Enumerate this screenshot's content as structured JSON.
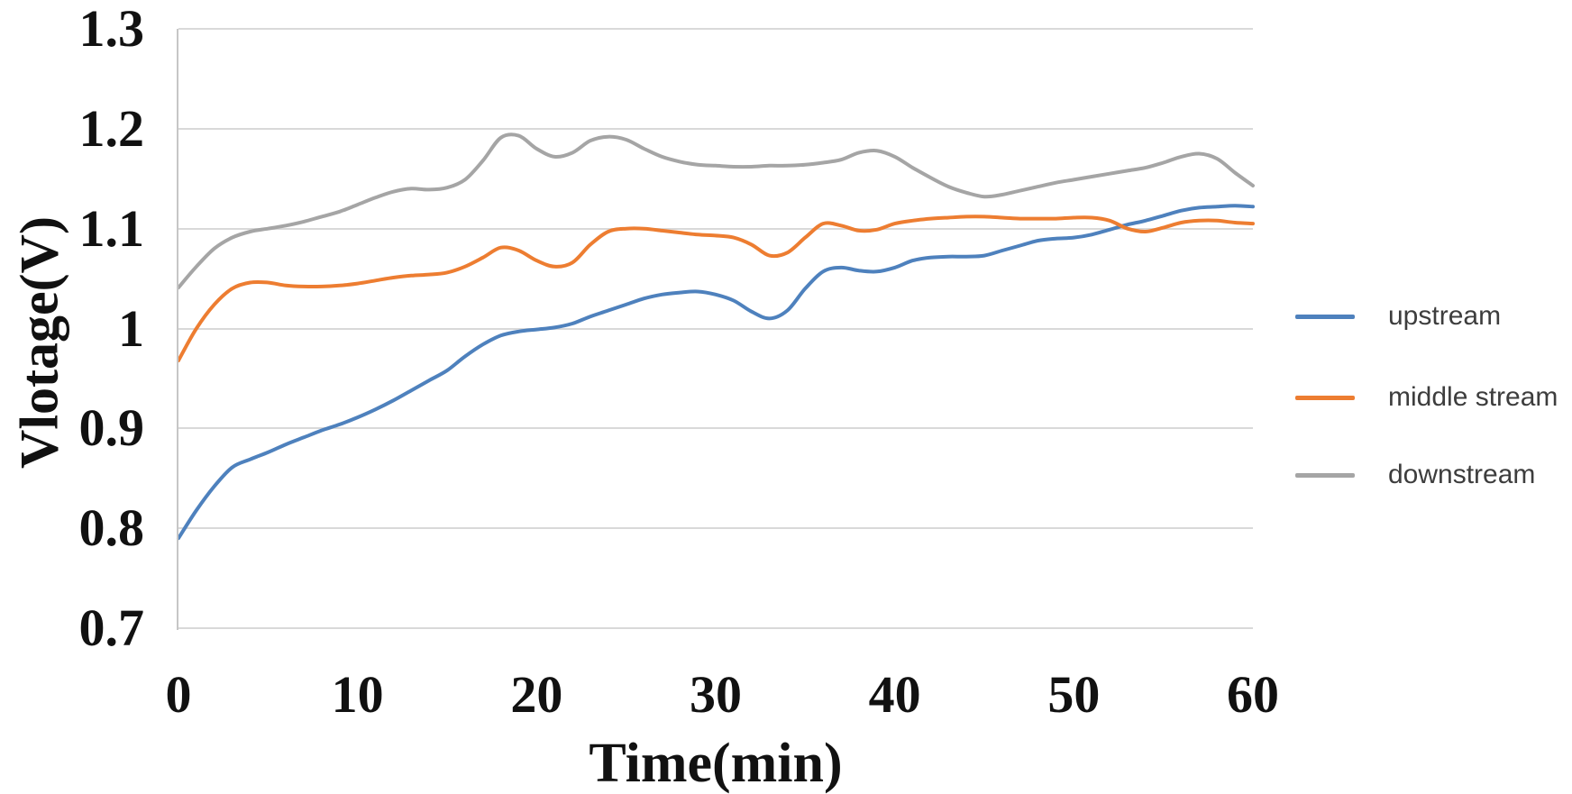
{
  "chart_data": {
    "type": "line",
    "title": "",
    "xlabel": "Time(min)",
    "ylabel": "Vlotage(V)",
    "xlim": [
      0,
      60
    ],
    "ylim": [
      0.7,
      1.3
    ],
    "x_ticks": [
      "0",
      "10",
      "20",
      "30",
      "40",
      "50",
      "60"
    ],
    "x_tick_values": [
      0,
      10,
      20,
      30,
      40,
      50,
      60
    ],
    "y_ticks": [
      "1.3",
      "1.2",
      "1.1",
      "1",
      "0.9",
      "0.8",
      "0.7"
    ],
    "y_tick_values": [
      1.3,
      1.2,
      1.1,
      1.0,
      0.9,
      0.8,
      0.7
    ],
    "grid": "horizontal",
    "legend_position": "right",
    "x": [
      0,
      1,
      2,
      3,
      4,
      5,
      6,
      7,
      8,
      9,
      10,
      11,
      12,
      13,
      14,
      15,
      16,
      17,
      18,
      19,
      20,
      21,
      22,
      23,
      24,
      25,
      26,
      27,
      28,
      29,
      30,
      31,
      32,
      33,
      34,
      35,
      36,
      37,
      38,
      39,
      40,
      41,
      42,
      43,
      44,
      45,
      46,
      47,
      48,
      49,
      50,
      51,
      52,
      53,
      54,
      55,
      56,
      57,
      58,
      59,
      60
    ],
    "series": [
      {
        "name": "upstream",
        "color": "#4e81bd",
        "values": [
          0.79,
          0.818,
          0.842,
          0.861,
          0.869,
          0.876,
          0.884,
          0.891,
          0.898,
          0.904,
          0.911,
          0.919,
          0.928,
          0.938,
          0.948,
          0.958,
          0.972,
          0.984,
          0.993,
          0.997,
          0.999,
          1.001,
          1.005,
          1.012,
          1.018,
          1.024,
          1.03,
          1.034,
          1.036,
          1.037,
          1.034,
          1.028,
          1.017,
          1.01,
          1.018,
          1.04,
          1.057,
          1.061,
          1.058,
          1.057,
          1.061,
          1.068,
          1.071,
          1.072,
          1.072,
          1.073,
          1.078,
          1.083,
          1.088,
          1.09,
          1.091,
          1.094,
          1.099,
          1.104,
          1.108,
          1.113,
          1.118,
          1.121,
          1.122,
          1.123,
          1.122
        ]
      },
      {
        "name": "middle stream",
        "color": "#ed7d31",
        "values": [
          0.968,
          1.0,
          1.024,
          1.04,
          1.046,
          1.046,
          1.043,
          1.042,
          1.042,
          1.043,
          1.045,
          1.048,
          1.051,
          1.053,
          1.054,
          1.056,
          1.062,
          1.071,
          1.081,
          1.078,
          1.068,
          1.062,
          1.066,
          1.084,
          1.097,
          1.1,
          1.1,
          1.098,
          1.096,
          1.094,
          1.093,
          1.091,
          1.084,
          1.073,
          1.076,
          1.091,
          1.105,
          1.103,
          1.098,
          1.099,
          1.105,
          1.108,
          1.11,
          1.111,
          1.112,
          1.112,
          1.111,
          1.11,
          1.11,
          1.11,
          1.111,
          1.111,
          1.108,
          1.1,
          1.097,
          1.101,
          1.106,
          1.108,
          1.108,
          1.106,
          1.105
        ]
      },
      {
        "name": "downstream",
        "color": "#a5a5a5",
        "values": [
          1.041,
          1.062,
          1.08,
          1.091,
          1.097,
          1.1,
          1.103,
          1.107,
          1.112,
          1.117,
          1.124,
          1.131,
          1.137,
          1.14,
          1.139,
          1.141,
          1.149,
          1.168,
          1.191,
          1.193,
          1.18,
          1.172,
          1.176,
          1.188,
          1.192,
          1.189,
          1.18,
          1.172,
          1.167,
          1.164,
          1.163,
          1.162,
          1.162,
          1.163,
          1.163,
          1.164,
          1.166,
          1.169,
          1.176,
          1.178,
          1.172,
          1.161,
          1.151,
          1.142,
          1.136,
          1.132,
          1.134,
          1.138,
          1.142,
          1.146,
          1.149,
          1.152,
          1.155,
          1.158,
          1.161,
          1.166,
          1.172,
          1.175,
          1.17,
          1.156,
          1.143
        ]
      }
    ]
  },
  "style": {
    "gridline_color": "#d9d9d9",
    "axis_line_color": "#c6c6c6",
    "tick_text_color": "#111111",
    "legend_text_color": "#3d3d3d",
    "line_width": 4
  }
}
